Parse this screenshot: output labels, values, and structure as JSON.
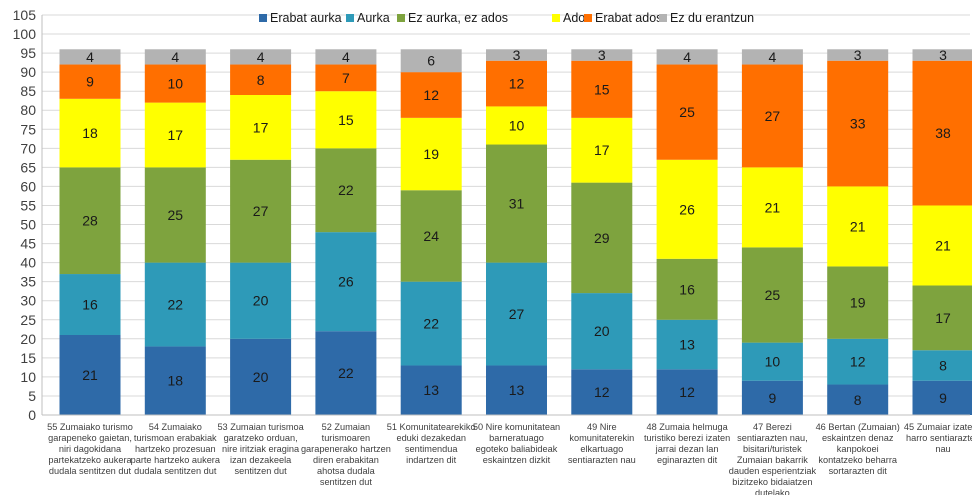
{
  "chart_data": {
    "type": "bar",
    "stacked": true,
    "title": "",
    "xlabel": "",
    "ylabel": "",
    "ylim": [
      0,
      105
    ],
    "yticks": [
      0,
      5,
      10,
      15,
      20,
      25,
      30,
      35,
      40,
      45,
      50,
      55,
      60,
      65,
      70,
      75,
      80,
      85,
      90,
      95,
      100,
      105
    ],
    "grid": true,
    "legend_position": "top",
    "categories": [
      [
        "55 Zumaiako turismo",
        "garapeneko gaietan,",
        "niri dagokidana",
        "partekatzeko aukera",
        "dudala sentitzen dut"
      ],
      [
        "54 Zumaiako",
        "turismoan erabakiak",
        "hartzeko prozesuan",
        "parte hartzeko aukera",
        "dudala sentitzen dut"
      ],
      [
        "53 Zumaian turismoa",
        "garatzeko orduan,",
        "nire iritziak eragina",
        "izan dezakeela",
        "sentitzen dut"
      ],
      [
        "52 Zumaian",
        "turismoaren",
        "garapenerako hartzen",
        "diren erabakitan",
        "ahotsa dudala",
        "sentitzen dut"
      ],
      [
        "51 Komunitatearekiko",
        "eduki dezakedan",
        "sentimendua",
        "indartzen dit"
      ],
      [
        "50 Nire komunitatean",
        "barneratuago",
        "egoteko baliabideak",
        "eskaintzen dizkit"
      ],
      [
        "49 Nire",
        "komunitaterekin",
        "elkartuago",
        "sentiarazten nau"
      ],
      [
        "48 Zumaia helmuga",
        "turistiko berezi izaten",
        "jarrai dezan lan",
        "eginarazten dit"
      ],
      [
        "47 Berezi",
        "sentiarazten nau,",
        "bisitari/turistek",
        "Zumaian bakarrik",
        "dauden esperientziak",
        "bizitzeko bidaiatzen",
        "dutelako"
      ],
      [
        "46 Bertan (Zumaian)",
        "eskaintzen denaz",
        "kanpokoei",
        "kontatzeko beharra",
        "sortarazten dit"
      ],
      [
        "45 Zumaiar izateaz",
        "harro sentiarazten",
        "nau"
      ]
    ],
    "series": [
      {
        "name": "Erabat aurka",
        "color": "#2e6aa8",
        "values": [
          21,
          18,
          20,
          22,
          13,
          13,
          12,
          12,
          9,
          8,
          9
        ]
      },
      {
        "name": "Aurka",
        "color": "#2e9ab8",
        "values": [
          16,
          22,
          20,
          26,
          22,
          27,
          20,
          13,
          10,
          12,
          8
        ]
      },
      {
        "name": "Ez aurka, ez ados",
        "color": "#7ea33e",
        "values": [
          28,
          25,
          27,
          22,
          24,
          31,
          29,
          16,
          25,
          19,
          17
        ]
      },
      {
        "name": "Ados",
        "color": "#ffff00",
        "values": [
          18,
          17,
          17,
          15,
          19,
          10,
          17,
          26,
          21,
          21,
          21
        ]
      },
      {
        "name": "Erabat ados",
        "color": "#ff6f00",
        "values": [
          9,
          10,
          8,
          7,
          12,
          12,
          15,
          25,
          27,
          33,
          38
        ]
      },
      {
        "name": "Ez du erantzun",
        "color": "#b3b3b3",
        "values": [
          4,
          4,
          4,
          4,
          6,
          3,
          3,
          4,
          4,
          3,
          3
        ]
      }
    ]
  }
}
